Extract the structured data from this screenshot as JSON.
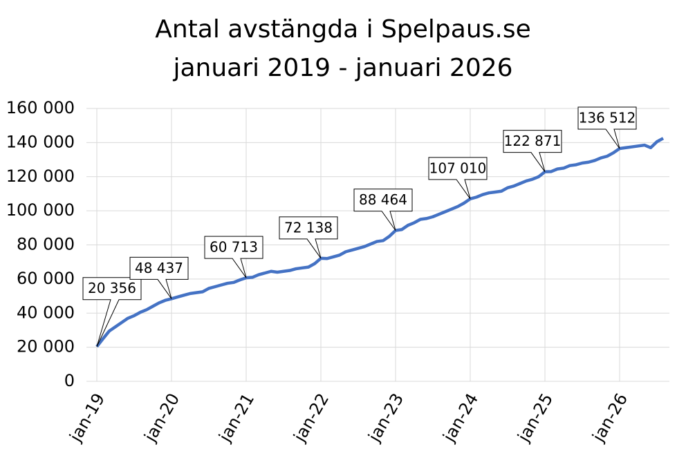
{
  "chart_data": {
    "type": "line",
    "title": [
      "Antal avstängda i Spelpaus.se",
      "januari 2019 - januari 2026"
    ],
    "categories": [
      "jan-19",
      null,
      null,
      null,
      null,
      null,
      null,
      null,
      null,
      null,
      null,
      null,
      "jan-20",
      null,
      null,
      null,
      null,
      null,
      null,
      null,
      null,
      null,
      null,
      null,
      "jan-21",
      null,
      null,
      null,
      null,
      null,
      null,
      null,
      null,
      null,
      null,
      null,
      "jan-22",
      null,
      null,
      null,
      null,
      null,
      null,
      null,
      null,
      null,
      null,
      null,
      "jan-23",
      null,
      null,
      null,
      null,
      null,
      null,
      null,
      null,
      null,
      null,
      null,
      "jan-24",
      null,
      null,
      null,
      null,
      null,
      null,
      null,
      null,
      null,
      null,
      null,
      "jan-25",
      null,
      null,
      null,
      null,
      null,
      null,
      null,
      null,
      null,
      null,
      null,
      "jan-26",
      null,
      null,
      null,
      null,
      null,
      null,
      null
    ],
    "series": [
      {
        "name": "Antal avstängda",
        "color": "#4472c4",
        "values": [
          20356,
          25000,
          29500,
          32000,
          34500,
          37000,
          38500,
          40500,
          42000,
          44000,
          46000,
          47500,
          48437,
          49500,
          50500,
          51500,
          52000,
          52500,
          54500,
          55500,
          56500,
          57500,
          58000,
          59500,
          60713,
          61000,
          62500,
          63500,
          64500,
          64000,
          64500,
          65000,
          66000,
          66500,
          67000,
          69000,
          72138,
          72000,
          73000,
          74000,
          76000,
          77000,
          78000,
          79000,
          80500,
          82000,
          82500,
          85000,
          88464,
          89000,
          91500,
          93000,
          95000,
          95500,
          96500,
          98000,
          99500,
          101000,
          102500,
          104500,
          107010,
          108000,
          109500,
          110500,
          111000,
          111500,
          113500,
          114500,
          116000,
          117500,
          118500,
          120000,
          122871,
          123000,
          124500,
          125000,
          126500,
          127000,
          128000,
          128500,
          129500,
          131000,
          132000,
          134000,
          136512,
          137000,
          137500,
          138000,
          138500,
          137000,
          140500,
          142500
        ],
        "value_labels": [
          "20 356",
          null,
          null,
          null,
          null,
          null,
          null,
          null,
          null,
          null,
          null,
          null,
          "48 437",
          null,
          null,
          null,
          null,
          null,
          null,
          null,
          null,
          null,
          null,
          null,
          "60 713",
          null,
          null,
          null,
          null,
          null,
          null,
          null,
          null,
          null,
          null,
          null,
          "72 138",
          null,
          null,
          null,
          null,
          null,
          null,
          null,
          null,
          null,
          null,
          null,
          "88 464",
          null,
          null,
          null,
          null,
          null,
          null,
          null,
          null,
          null,
          null,
          null,
          "107 010",
          null,
          null,
          null,
          null,
          null,
          null,
          null,
          null,
          null,
          null,
          null,
          "122 871",
          null,
          null,
          null,
          null,
          null,
          null,
          null,
          null,
          null,
          null,
          null,
          "136 512",
          null,
          null,
          null,
          null,
          null,
          null,
          null
        ]
      }
    ],
    "ylim": [
      0,
      160000
    ],
    "yticks": [
      0,
      {
        "value": 20000,
        "label": "20 000"
      },
      {
        "value": 40000,
        "label": "40 000"
      },
      {
        "value": 60000,
        "label": "60 000"
      },
      {
        "value": 80000,
        "label": "80 000"
      },
      {
        "value": 100000,
        "label": "100 000"
      },
      {
        "value": 120000,
        "label": "120 000"
      },
      {
        "value": 140000,
        "label": "140 000"
      },
      {
        "value": 160000,
        "label": "160 000"
      }
    ],
    "grid": true
  }
}
